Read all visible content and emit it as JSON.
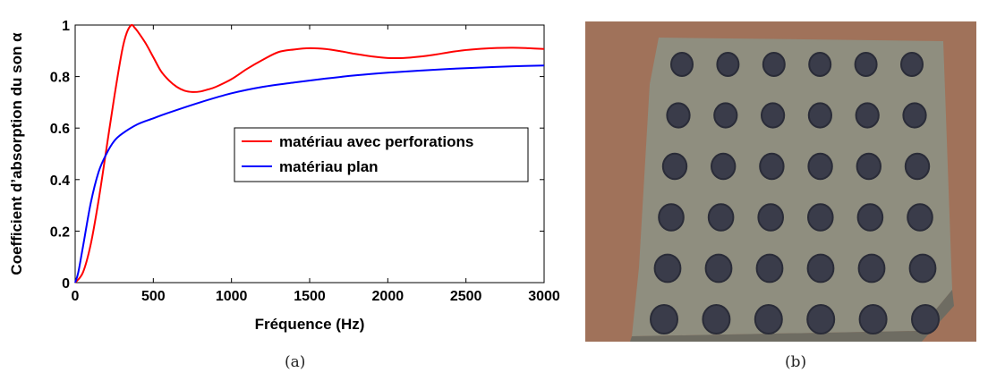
{
  "panels": {
    "a_caption": "(a)",
    "b_caption": "(b)"
  },
  "chart_data": {
    "type": "line",
    "title": "",
    "xlabel": "Fréquence (Hz)",
    "ylabel": "Coefficient d’absorption du son α",
    "xlim": [
      0,
      3000
    ],
    "ylim": [
      0,
      1
    ],
    "xticks": [
      0,
      500,
      1000,
      1500,
      2000,
      2500,
      3000
    ],
    "yticks": [
      0,
      0.2,
      0.4,
      0.6,
      0.8,
      1
    ],
    "ytick_labels": [
      "0",
      "0.2",
      "0.4",
      "0.6",
      "0.8",
      "1"
    ],
    "grid": false,
    "legend": "center-right",
    "series": [
      {
        "name": "matériau avec perforations",
        "color": "#ff0000",
        "x": [
          0,
          50,
          100,
          150,
          200,
          250,
          300,
          330,
          360,
          380,
          400,
          450,
          500,
          550,
          600,
          650,
          700,
          750,
          800,
          850,
          900,
          1000,
          1100,
          1200,
          1300,
          1400,
          1500,
          1600,
          1700,
          1800,
          1900,
          2000,
          2100,
          2200,
          2300,
          2400,
          2500,
          2600,
          2700,
          2800,
          2900,
          3000
        ],
        "y": [
          0,
          0.04,
          0.15,
          0.32,
          0.52,
          0.72,
          0.9,
          0.97,
          1.0,
          0.99,
          0.975,
          0.93,
          0.875,
          0.82,
          0.785,
          0.76,
          0.745,
          0.74,
          0.742,
          0.75,
          0.76,
          0.79,
          0.83,
          0.865,
          0.895,
          0.905,
          0.91,
          0.907,
          0.898,
          0.887,
          0.878,
          0.872,
          0.872,
          0.877,
          0.885,
          0.895,
          0.903,
          0.908,
          0.911,
          0.912,
          0.91,
          0.907
        ]
      },
      {
        "name": "matériau plan",
        "color": "#0000ff",
        "x": [
          0,
          20,
          50,
          100,
          150,
          200,
          250,
          300,
          400,
          500,
          600,
          800,
          1000,
          1200,
          1400,
          1600,
          1800,
          2000,
          2200,
          2400,
          2600,
          2800,
          3000
        ],
        "y": [
          0,
          0.04,
          0.14,
          0.31,
          0.43,
          0.5,
          0.55,
          0.578,
          0.615,
          0.638,
          0.66,
          0.7,
          0.735,
          0.76,
          0.777,
          0.792,
          0.805,
          0.815,
          0.823,
          0.83,
          0.835,
          0.84,
          0.843
        ]
      }
    ]
  },
  "photo": {
    "description_name": "perforated-absorber-sample",
    "colors": {
      "background": "#a0725a",
      "material": "#8f8e7f",
      "hole": "#3a3c4a"
    }
  }
}
